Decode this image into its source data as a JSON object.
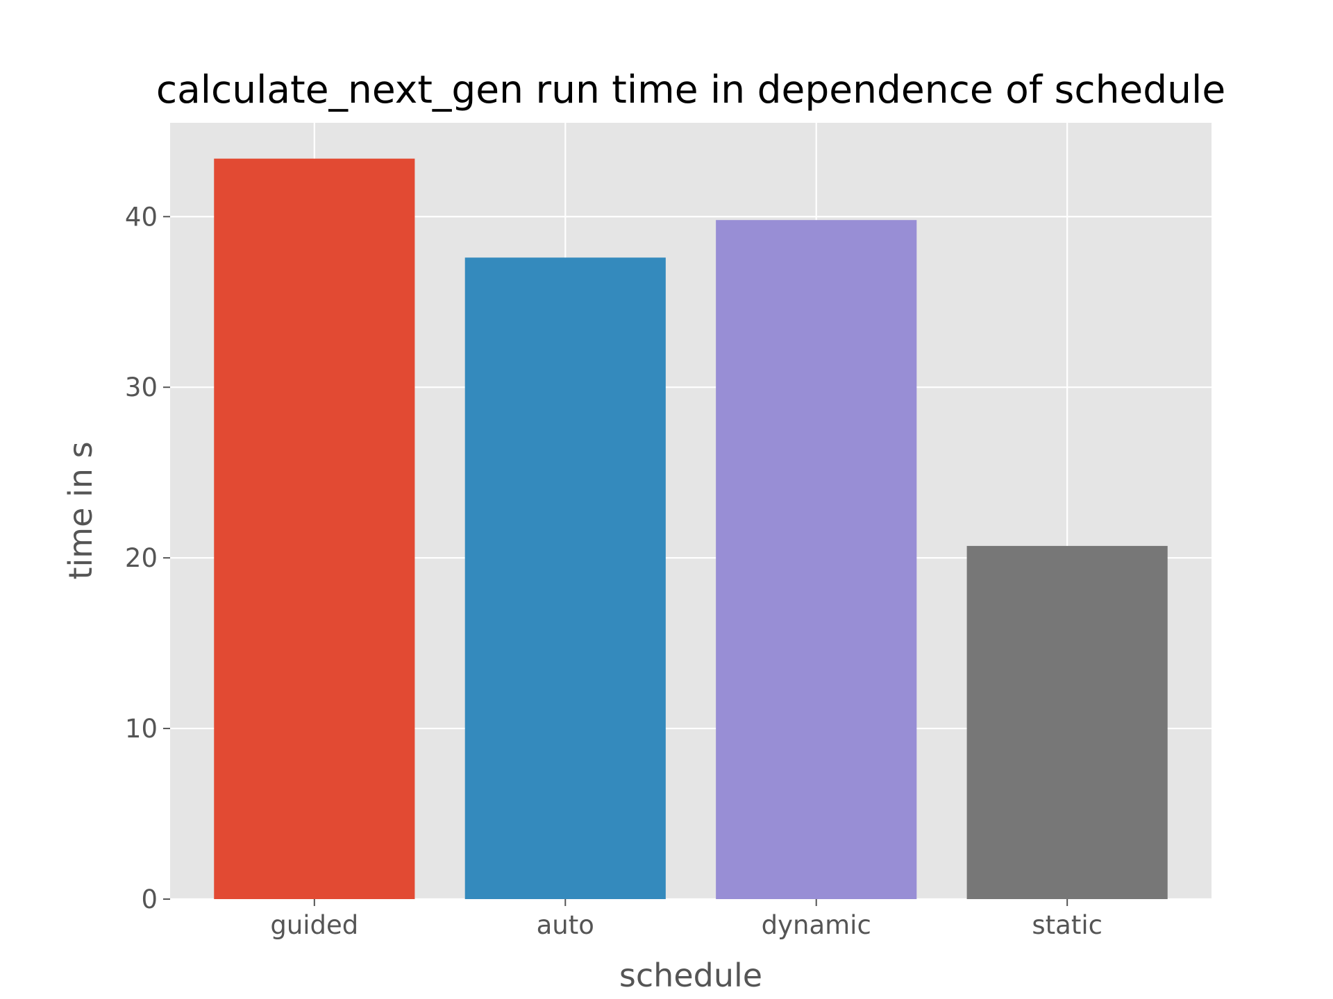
{
  "chart_data": {
    "type": "bar",
    "title": "calculate_next_gen run time in dependence of schedule",
    "xlabel": "schedule",
    "ylabel": "time in s",
    "categories": [
      "guided",
      "auto",
      "dynamic",
      "static"
    ],
    "values": [
      43.4,
      37.6,
      39.8,
      20.7
    ],
    "ylim": [
      0,
      45.5
    ],
    "yticks": [
      0,
      10,
      20,
      30,
      40
    ],
    "grid": true,
    "style": "ggplot",
    "colors": [
      "#E24A33",
      "#348ABD",
      "#988ED5",
      "#777777"
    ],
    "background": "#E5E5E5"
  }
}
